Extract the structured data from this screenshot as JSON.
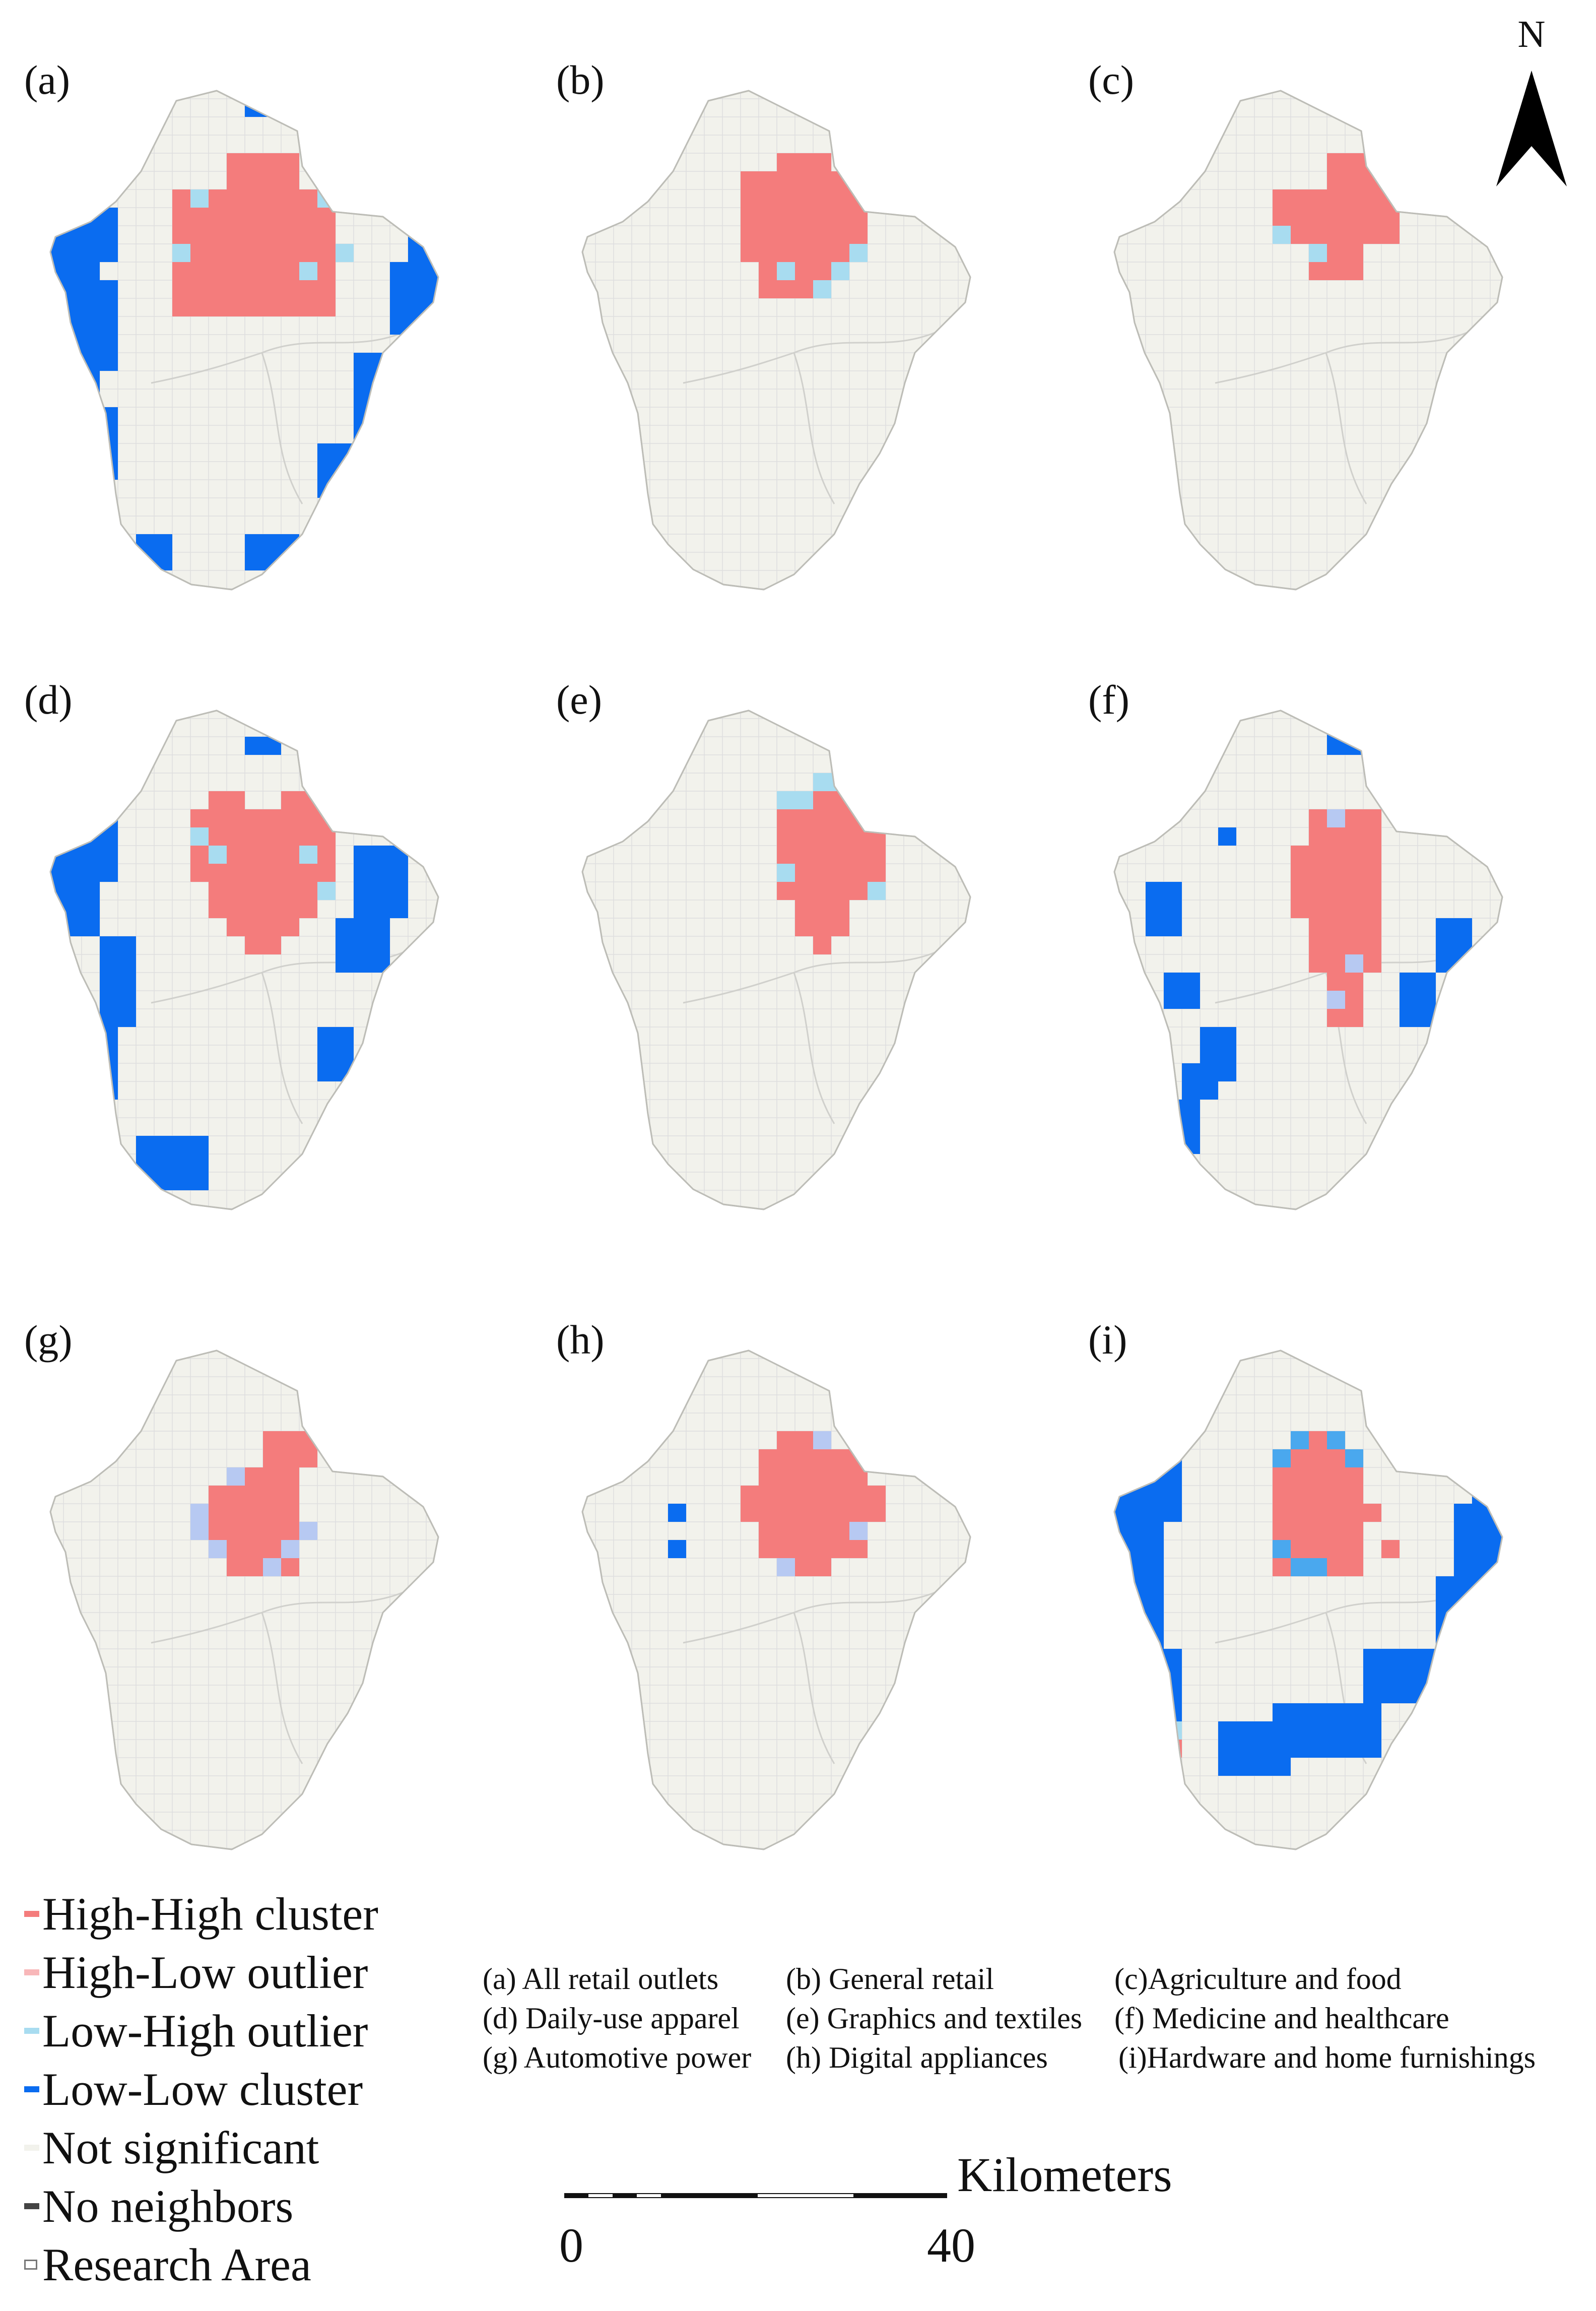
{
  "colors": {
    "high_high": "#f47c7c",
    "high_low": "#f8b7b9",
    "low_high": "#a8dcf0",
    "low_low": "#0a6cf0",
    "not_significant": "#f2f2ec",
    "no_neighbors": "#444444",
    "low_high_i": "#4aa8ee",
    "low_high_lilac": "#b7c9f2"
  },
  "panels": [
    {
      "label": "(a)",
      "name": "All retail outlets"
    },
    {
      "label": "(b)",
      "name": "General retail"
    },
    {
      "label": "(c)",
      "name": "Agriculture and food"
    },
    {
      "label": "(d)",
      "name": "Daily-use apparel"
    },
    {
      "label": "(e)",
      "name": "Graphics and textiles"
    },
    {
      "label": "(f)",
      "name": "Medicine and healthcare"
    },
    {
      "label": "(g)",
      "name": "Automotive power"
    },
    {
      "label": "(h)",
      "name": "Digital appliances"
    },
    {
      "label": "(i)",
      "name": "Hardware and home furnishings"
    }
  ],
  "north_arrow": {
    "label": "N",
    "icon": "north-arrow-icon"
  },
  "legend": [
    {
      "key": "high_high",
      "label": "High-High cluster"
    },
    {
      "key": "high_low",
      "label": "High-Low outlier"
    },
    {
      "key": "low_high",
      "label": "Low-High outlier"
    },
    {
      "key": "low_low",
      "label": "Low-Low cluster"
    },
    {
      "key": "not_significant",
      "label": "Not significant"
    },
    {
      "key": "no_neighbors",
      "label": "No neighbors"
    },
    {
      "key": "research_area",
      "label": "Research Area"
    }
  ],
  "category_notes": [
    [
      "(a) All retail outlets",
      "(b) General retail",
      "(c)Agriculture and food"
    ],
    [
      "(d) Daily-use apparel",
      "(e) Graphics and textiles",
      "(f) Medicine and healthcare"
    ],
    [
      "(g) Automotive power",
      "(h) Digital appliances",
      "(i)Hardware and home furnishings"
    ]
  ],
  "scale_bar": {
    "unit": "Kilometers",
    "start": "0",
    "end": "40"
  }
}
